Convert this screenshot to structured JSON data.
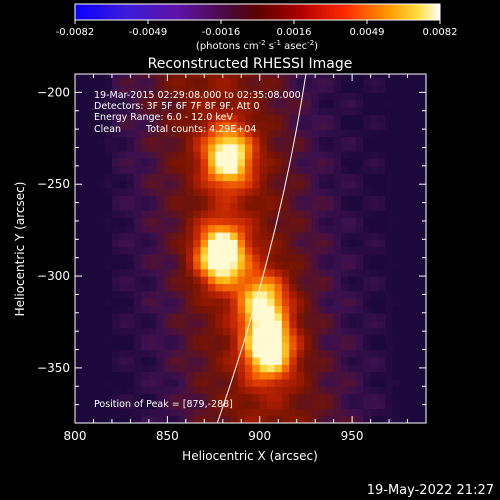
{
  "chart_data": {
    "type": "heatmap",
    "title": "Reconstructed RHESSI Image",
    "xlabel": "Heliocentric X (arcsec)",
    "ylabel": "Heliocentric Y (arcsec)",
    "xlim": [
      800,
      990
    ],
    "ylim": [
      -380,
      -190
    ],
    "x_ticks": [
      800,
      850,
      900,
      950
    ],
    "y_ticks": [
      -200,
      -250,
      -300,
      -350
    ],
    "colorbar": {
      "range": [
        -0.0082,
        0.0082
      ],
      "ticks": [
        "-0.0082",
        "-0.0049",
        "-0.0016",
        "0.0016",
        "0.0049",
        "0.0082"
      ],
      "unit_main": "(photons cm",
      "unit_exp1": "-2",
      "unit_mid": " s",
      "unit_exp2": "-1",
      "unit_end": " asec",
      "unit_exp3": "-2",
      "unit_close": ")"
    },
    "annotations": {
      "time_range": "19-Mar-2015 02:29:08.000 to 02:35:08.000",
      "detectors": "Detectors: 3F 5F 6F 7F 8F 9F, Att 0",
      "energy": "Energy Range: 6.0 - 12.0 keV",
      "method": "Clean",
      "counts": "Total counts: 4.29E+04",
      "peak": "Position of Peak = [879,-288]"
    },
    "sources": [
      {
        "x": 879,
        "y": -288,
        "intensity": 1.0
      },
      {
        "x": 883,
        "y": -235,
        "intensity": 0.85
      },
      {
        "x": 905,
        "y": -340,
        "intensity": 0.88
      },
      {
        "x": 902,
        "y": -315,
        "intensity": 0.7
      }
    ],
    "limb_curve": [
      [
        925,
        -190
      ],
      [
        915,
        -255
      ],
      [
        898,
        -320
      ],
      [
        877,
        -380
      ]
    ]
  },
  "footer": {
    "timestamp": "19-May-2022 21:27"
  },
  "colors": {
    "background": "#000000",
    "text": "#ffffff",
    "limb": "#ffffff"
  }
}
